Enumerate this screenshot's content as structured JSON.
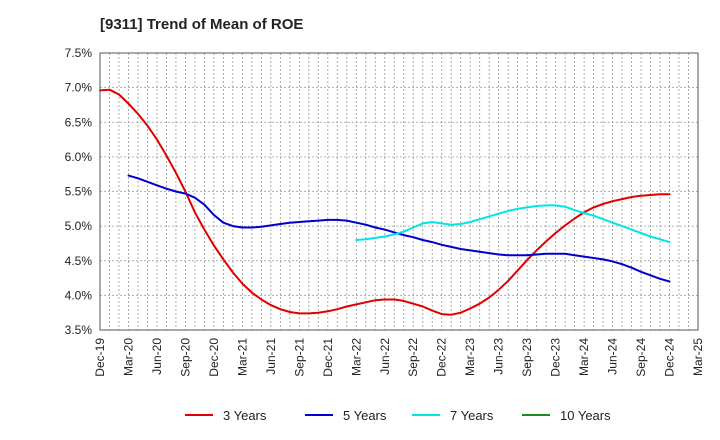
{
  "chart_data": {
    "type": "line",
    "title": "[9311]  Trend of Mean of ROE",
    "xlabel": "",
    "ylabel": "",
    "x_tick_labels": [
      "Dec-19",
      "Mar-20",
      "Jun-20",
      "Sep-20",
      "Dec-20",
      "Mar-21",
      "Jun-21",
      "Sep-21",
      "Dec-21",
      "Mar-22",
      "Jun-22",
      "Sep-22",
      "Dec-22",
      "Mar-23",
      "Jun-23",
      "Sep-23",
      "Dec-23",
      "Mar-24",
      "Jun-24",
      "Sep-24",
      "Dec-24",
      "Mar-25"
    ],
    "y_tick_labels": [
      "7.5%",
      "7.0%",
      "6.5%",
      "6.0%",
      "5.5%",
      "5.0%",
      "4.5%",
      "4.0%",
      "3.5%"
    ],
    "ylim": [
      3.5,
      7.5
    ],
    "grid": true,
    "legend_position": "bottom",
    "series": [
      {
        "name": "3 Years",
        "color": "#e00000",
        "points": [
          [
            "Dec-19",
            6.96
          ],
          [
            "Jan-20",
            6.97
          ],
          [
            "Feb-20",
            6.9
          ],
          [
            "Mar-20",
            6.77
          ],
          [
            "Apr-20",
            6.62
          ],
          [
            "May-20",
            6.45
          ],
          [
            "Jun-20",
            6.25
          ],
          [
            "Jul-20",
            6.02
          ],
          [
            "Aug-20",
            5.77
          ],
          [
            "Sep-20",
            5.5
          ],
          [
            "Oct-20",
            5.2
          ],
          [
            "Nov-20",
            4.95
          ],
          [
            "Dec-20",
            4.72
          ],
          [
            "Jan-21",
            4.52
          ],
          [
            "Feb-21",
            4.33
          ],
          [
            "Mar-21",
            4.17
          ],
          [
            "Apr-21",
            4.04
          ],
          [
            "May-21",
            3.94
          ],
          [
            "Jun-21",
            3.86
          ],
          [
            "Jul-21",
            3.8
          ],
          [
            "Aug-21",
            3.76
          ],
          [
            "Sep-21",
            3.74
          ],
          [
            "Oct-21",
            3.74
          ],
          [
            "Nov-21",
            3.75
          ],
          [
            "Dec-21",
            3.77
          ],
          [
            "Jan-22",
            3.8
          ],
          [
            "Feb-22",
            3.84
          ],
          [
            "Mar-22",
            3.87
          ],
          [
            "Apr-22",
            3.9
          ],
          [
            "May-22",
            3.93
          ],
          [
            "Jun-22",
            3.94
          ],
          [
            "Jul-22",
            3.94
          ],
          [
            "Aug-22",
            3.92
          ],
          [
            "Sep-22",
            3.88
          ],
          [
            "Oct-22",
            3.84
          ],
          [
            "Nov-22",
            3.78
          ],
          [
            "Dec-22",
            3.73
          ],
          [
            "Jan-23",
            3.72
          ],
          [
            "Feb-23",
            3.75
          ],
          [
            "Mar-23",
            3.81
          ],
          [
            "Apr-23",
            3.88
          ],
          [
            "May-23",
            3.97
          ],
          [
            "Jun-23",
            4.08
          ],
          [
            "Jul-23",
            4.21
          ],
          [
            "Aug-23",
            4.36
          ],
          [
            "Sep-23",
            4.51
          ],
          [
            "Oct-23",
            4.65
          ],
          [
            "Nov-23",
            4.78
          ],
          [
            "Dec-23",
            4.9
          ],
          [
            "Jan-24",
            5.01
          ],
          [
            "Feb-24",
            5.11
          ],
          [
            "Mar-24",
            5.2
          ],
          [
            "Apr-24",
            5.27
          ],
          [
            "May-24",
            5.32
          ],
          [
            "Jun-24",
            5.36
          ],
          [
            "Jul-24",
            5.39
          ],
          [
            "Aug-24",
            5.42
          ],
          [
            "Sep-24",
            5.44
          ],
          [
            "Oct-24",
            5.45
          ],
          [
            "Nov-24",
            5.46
          ],
          [
            "Dec-24",
            5.46
          ]
        ]
      },
      {
        "name": "5 Years",
        "color": "#0000cc",
        "points": [
          [
            "Mar-20",
            5.73
          ],
          [
            "Apr-20",
            5.69
          ],
          [
            "May-20",
            5.64
          ],
          [
            "Jun-20",
            5.59
          ],
          [
            "Jul-20",
            5.54
          ],
          [
            "Aug-20",
            5.5
          ],
          [
            "Sep-20",
            5.47
          ],
          [
            "Oct-20",
            5.41
          ],
          [
            "Nov-20",
            5.31
          ],
          [
            "Dec-20",
            5.16
          ],
          [
            "Jan-21",
            5.05
          ],
          [
            "Feb-21",
            5.0
          ],
          [
            "Mar-21",
            4.98
          ],
          [
            "Apr-21",
            4.98
          ],
          [
            "May-21",
            4.99
          ],
          [
            "Jun-21",
            5.01
          ],
          [
            "Jul-21",
            5.03
          ],
          [
            "Aug-21",
            5.05
          ],
          [
            "Sep-21",
            5.06
          ],
          [
            "Oct-21",
            5.07
          ],
          [
            "Nov-21",
            5.08
          ],
          [
            "Dec-21",
            5.09
          ],
          [
            "Jan-22",
            5.09
          ],
          [
            "Feb-22",
            5.08
          ],
          [
            "Mar-22",
            5.05
          ],
          [
            "Apr-22",
            5.02
          ],
          [
            "May-22",
            4.98
          ],
          [
            "Jun-22",
            4.95
          ],
          [
            "Jul-22",
            4.91
          ],
          [
            "Aug-22",
            4.87
          ],
          [
            "Sep-22",
            4.84
          ],
          [
            "Oct-22",
            4.8
          ],
          [
            "Nov-22",
            4.77
          ],
          [
            "Dec-22",
            4.73
          ],
          [
            "Jan-23",
            4.7
          ],
          [
            "Feb-23",
            4.67
          ],
          [
            "Mar-23",
            4.65
          ],
          [
            "Apr-23",
            4.63
          ],
          [
            "May-23",
            4.61
          ],
          [
            "Jun-23",
            4.59
          ],
          [
            "Jul-23",
            4.58
          ],
          [
            "Aug-23",
            4.58
          ],
          [
            "Sep-23",
            4.58
          ],
          [
            "Oct-23",
            4.59
          ],
          [
            "Nov-23",
            4.6
          ],
          [
            "Dec-23",
            4.6
          ],
          [
            "Jan-24",
            4.6
          ],
          [
            "Feb-24",
            4.58
          ],
          [
            "Mar-24",
            4.56
          ],
          [
            "Apr-24",
            4.54
          ],
          [
            "May-24",
            4.52
          ],
          [
            "Jun-24",
            4.49
          ],
          [
            "Jul-24",
            4.45
          ],
          [
            "Aug-24",
            4.4
          ],
          [
            "Sep-24",
            4.34
          ],
          [
            "Oct-24",
            4.29
          ],
          [
            "Nov-24",
            4.24
          ],
          [
            "Dec-24",
            4.2
          ]
        ]
      },
      {
        "name": "7 Years",
        "color": "#00e5e5",
        "points": [
          [
            "Mar-22",
            4.8
          ],
          [
            "Apr-22",
            4.81
          ],
          [
            "May-22",
            4.83
          ],
          [
            "Jun-22",
            4.85
          ],
          [
            "Jul-22",
            4.88
          ],
          [
            "Aug-22",
            4.92
          ],
          [
            "Sep-22",
            4.98
          ],
          [
            "Oct-22",
            5.04
          ],
          [
            "Nov-22",
            5.06
          ],
          [
            "Dec-22",
            5.04
          ],
          [
            "Jan-23",
            5.02
          ],
          [
            "Feb-23",
            5.03
          ],
          [
            "Mar-23",
            5.06
          ],
          [
            "Apr-23",
            5.1
          ],
          [
            "May-23",
            5.14
          ],
          [
            "Jun-23",
            5.18
          ],
          [
            "Jul-23",
            5.22
          ],
          [
            "Aug-23",
            5.25
          ],
          [
            "Sep-23",
            5.27
          ],
          [
            "Oct-23",
            5.29
          ],
          [
            "Nov-23",
            5.3
          ],
          [
            "Dec-23",
            5.3
          ],
          [
            "Jan-24",
            5.28
          ],
          [
            "Feb-24",
            5.23
          ],
          [
            "Mar-24",
            5.19
          ],
          [
            "Apr-24",
            5.15
          ],
          [
            "May-24",
            5.1
          ],
          [
            "Jun-24",
            5.05
          ],
          [
            "Jul-24",
            5.0
          ],
          [
            "Aug-24",
            4.95
          ],
          [
            "Sep-24",
            4.9
          ],
          [
            "Oct-24",
            4.85
          ],
          [
            "Nov-24",
            4.81
          ],
          [
            "Dec-24",
            4.77
          ]
        ]
      },
      {
        "name": "10 Years",
        "color": "#1a8c1a",
        "points": []
      }
    ]
  }
}
